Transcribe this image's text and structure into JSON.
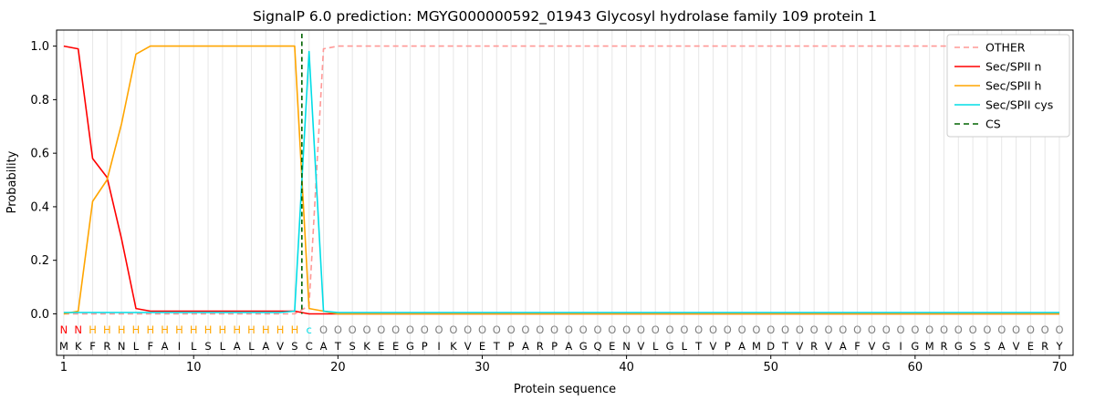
{
  "chart_data": {
    "type": "line",
    "title": "SignalP 6.0 prediction: MGYG000000592_01943 Glycosyl hydrolase family 109 protein 1",
    "xlabel": "Protein sequence",
    "ylabel": "Probability",
    "xticks": [
      1,
      10,
      20,
      30,
      40,
      50,
      60,
      70
    ],
    "yticks": [
      0.0,
      0.2,
      0.4,
      0.6,
      0.8,
      1.0
    ],
    "xlim": [
      0.5,
      70.95
    ],
    "ylim": [
      -0.155,
      1.06
    ],
    "grid": "light vertical gridline at every residue position, no horizontal grid",
    "legend_position": "upper right",
    "sequence": "MKFRNLFAILSLALAVSCATSKEEGPIKVETPARPAGQENVLGLTVPAMDTVRVAFVGIGMRGSSAVERY",
    "annotation": "NNHHHHHHHHHHHHHHHcOOOOOOOOOOOOOOOOOOOOOOOOOOOOOOOOOOOOOOOOOOOOOOOOOOOO",
    "annotation_colors": {
      "N": "#ff0000",
      "H": "#ffa500",
      "c": "#00dde6",
      "O": "#808080"
    },
    "colors": {
      "grid": "#e7e7e7",
      "frame": "#000000",
      "text": "#000000",
      "legend_border": "#cccccc",
      "legend_background": "#ffffff"
    },
    "cs_site": "between residue 17 (S) and residue 18 (C)",
    "series": [
      {
        "name": "OTHER",
        "color": "#ff9896",
        "dash": true,
        "values": [
          0,
          0,
          0,
          0,
          0,
          0,
          0,
          0,
          0,
          0,
          0,
          0,
          0,
          0,
          0,
          0,
          0,
          0.03,
          0.99,
          1,
          1,
          1,
          1,
          1,
          1,
          1,
          1,
          1,
          1,
          1,
          1,
          1,
          1,
          1,
          1,
          1,
          1,
          1,
          1,
          1,
          1,
          1,
          1,
          1,
          1,
          1,
          1,
          1,
          1,
          1,
          1,
          1,
          1,
          1,
          1,
          1,
          1,
          1,
          1,
          1,
          1,
          1,
          1,
          1,
          1,
          1,
          1,
          1,
          1,
          1
        ]
      },
      {
        "name": "Sec/SPII n",
        "color": "#ff0000",
        "dash": false,
        "values": [
          1.0,
          0.99,
          0.58,
          0.51,
          0.28,
          0.02,
          0.01,
          0.01,
          0.01,
          0.01,
          0.01,
          0.01,
          0.01,
          0.01,
          0.01,
          0.01,
          0.01,
          0,
          0,
          0,
          0,
          0,
          0,
          0,
          0,
          0,
          0,
          0,
          0,
          0,
          0,
          0,
          0,
          0,
          0,
          0,
          0,
          0,
          0,
          0,
          0,
          0,
          0,
          0,
          0,
          0,
          0,
          0,
          0,
          0,
          0,
          0,
          0,
          0,
          0,
          0,
          0,
          0,
          0,
          0,
          0,
          0,
          0,
          0,
          0,
          0,
          0,
          0,
          0,
          0
        ]
      },
      {
        "name": "Sec/SPII h",
        "color": "#ffa500",
        "dash": false,
        "values": [
          0,
          0.01,
          0.42,
          0.5,
          0.71,
          0.97,
          1,
          1,
          1,
          1,
          1,
          1,
          1,
          1,
          1,
          1,
          1,
          0.02,
          0.01,
          0,
          0,
          0,
          0,
          0,
          0,
          0,
          0,
          0,
          0,
          0,
          0,
          0,
          0,
          0,
          0,
          0,
          0,
          0,
          0,
          0,
          0,
          0,
          0,
          0,
          0,
          0,
          0,
          0,
          0,
          0,
          0,
          0,
          0,
          0,
          0,
          0,
          0,
          0,
          0,
          0,
          0,
          0,
          0,
          0,
          0,
          0,
          0,
          0,
          0,
          0
        ]
      },
      {
        "name": "Sec/SPII cys",
        "color": "#00dde6",
        "dash": false,
        "values": [
          0.005,
          0.005,
          0.005,
          0.005,
          0.005,
          0.005,
          0.005,
          0.005,
          0.005,
          0.005,
          0.005,
          0.005,
          0.005,
          0.005,
          0.005,
          0.005,
          0.01,
          0.98,
          0.01,
          0.005,
          0.005,
          0.005,
          0.005,
          0.005,
          0.005,
          0.005,
          0.005,
          0.005,
          0.005,
          0.005,
          0.005,
          0.005,
          0.005,
          0.005,
          0.005,
          0.005,
          0.005,
          0.005,
          0.005,
          0.005,
          0.005,
          0.005,
          0.005,
          0.005,
          0.005,
          0.005,
          0.005,
          0.005,
          0.005,
          0.005,
          0.005,
          0.005,
          0.005,
          0.005,
          0.005,
          0.005,
          0.005,
          0.005,
          0.005,
          0.005,
          0.005,
          0.005,
          0.005,
          0.005,
          0.005,
          0.005,
          0.005,
          0.005,
          0.005,
          0.005
        ]
      },
      {
        "name": "CS",
        "color": "#006400",
        "dash": true,
        "vline": 17.5
      }
    ]
  }
}
